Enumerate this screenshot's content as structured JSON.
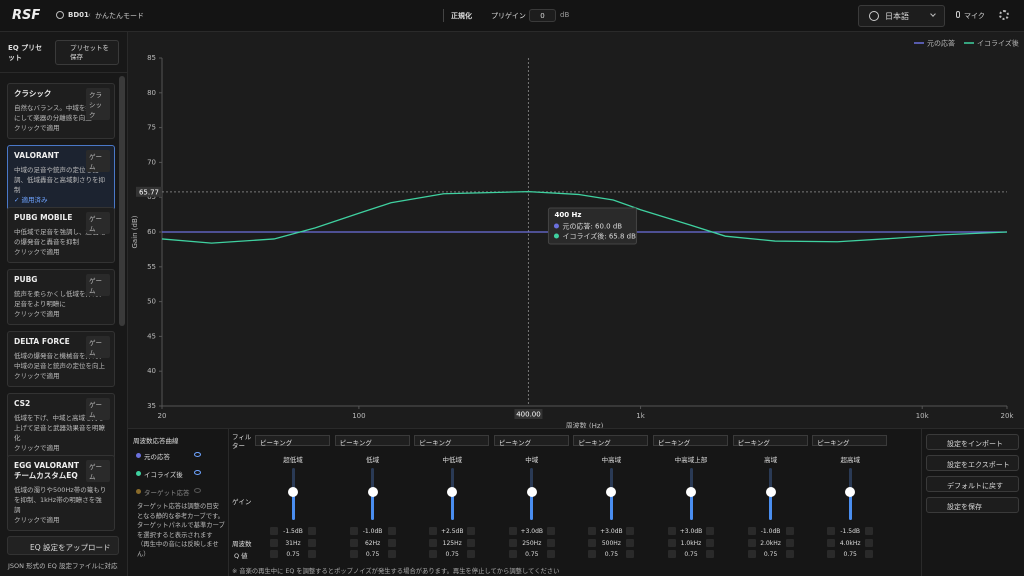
{
  "topbar": {
    "logo": "RSF",
    "device": "BD01",
    "mode": "かんたんモード",
    "normalize": "正規化",
    "pregain_label": "プリゲイン",
    "pregain": "0",
    "pregain_unit": "dB",
    "language": "日本語",
    "mic": "マイク"
  },
  "sidebar": {
    "title": "EQ プリセット",
    "save": "プリセットを保存",
    "presets": [
      {
        "name": "クラシック",
        "tag": "クラシック",
        "desc": "自然なバランス。中域を控えめにして楽器の分離感を向上",
        "action": "クリックで適用"
      },
      {
        "name": "VALORANT",
        "tag": "ゲーム",
        "desc": "中域の足音や銃声の定位を強調、低域轟音と高域刺さりを抑制",
        "action": "✓ 適用済み"
      },
      {
        "name": "PUBG MOBILE",
        "tag": "ゲーム",
        "desc": "中低域で足音を強調し、超低域の爆発音と轟音を抑制",
        "action": "クリックで適用"
      },
      {
        "name": "PUBG",
        "tag": "ゲーム",
        "desc": "銃声を柔らかくし低域を抑え、足音をより明瞭に",
        "action": "クリックで適用"
      },
      {
        "name": "DELTA FORCE",
        "tag": "ゲーム",
        "desc": "低域の爆発音と機械音を抑え、中域の足音と銃声の定位を向上",
        "action": "クリックで適用"
      },
      {
        "name": "CS2",
        "tag": "ゲーム",
        "desc": "低域を下げ、中域と高域を持ち上げて足音と武器効果音を明瞭化",
        "action": "クリックで適用"
      },
      {
        "name": "EGG VALORANT チームカスタムEQ",
        "tag": "ゲーム",
        "desc": "低域の濁りや500Hz帯の篭もりを抑制、1kHz帯の明瞭さを強調",
        "action": "クリックで適用"
      }
    ],
    "upload": "EQ 設定をアップロード",
    "upload_note": "JSON 形式の EQ 設定ファイルに対応"
  },
  "chart_data": {
    "type": "line",
    "x_label": "周波数 (Hz)",
    "y_label": "Gain (dB)",
    "x": [
      20,
      30,
      50,
      70,
      100,
      130,
      200,
      400,
      600,
      800,
      1000,
      1500,
      2000,
      3000,
      5000,
      8000,
      12000,
      20000
    ],
    "series": [
      {
        "name": "元の応答",
        "color": "#6b70dc",
        "values": [
          60,
          60,
          60,
          60,
          60,
          60,
          60,
          60,
          60,
          60,
          60,
          60,
          60,
          60,
          60,
          60,
          60,
          60
        ]
      },
      {
        "name": "イコライズ後",
        "color": "#3fd1a0",
        "values": [
          59.0,
          58.4,
          59.0,
          60.6,
          62.7,
          64.2,
          65.5,
          65.8,
          65.4,
          64.6,
          63.2,
          61.0,
          59.4,
          58.7,
          58.6,
          59.1,
          59.6,
          60.0
        ]
      }
    ],
    "xlim": [
      20,
      20000
    ],
    "log_x": true,
    "xticks": [
      20,
      100,
      {
        "value": 1000,
        "label": "1k"
      },
      {
        "value": 10000,
        "label": "10k"
      },
      {
        "value": 20000,
        "label": "20k"
      }
    ],
    "ylim": [
      35,
      85
    ],
    "yticks": [
      35,
      40,
      45,
      50,
      55,
      60,
      65,
      70,
      75,
      80,
      85
    ],
    "grid": false,
    "legend": "top-right",
    "crosshair": {
      "x": {
        "value": 400,
        "label": "400.00"
      },
      "y": 65.77
    },
    "tooltip": {
      "title": "400 Hz",
      "lines": [
        "元の応答: 60.0 dB",
        "イコライズ後: 65.8 dB"
      ]
    }
  },
  "curves_panel": {
    "title": "周波数応答曲線",
    "items": [
      "元の応答",
      "イコライズ後",
      "ターゲット応答"
    ],
    "note": "ターゲット応答は調整の目安となる静的な参考カーブです。ターゲットパネルで基準カーブを選択すると表示されます（再生中の音には反映しません）"
  },
  "eq": {
    "filter_label": "フィルター",
    "gain_label": "ゲイン",
    "freq_label": "周波数",
    "q_label": "Q 値",
    "bands": [
      {
        "type": "ピーキング",
        "name": "超低域",
        "gain": "-1.5dB",
        "freq": "31Hz",
        "q": "0.75"
      },
      {
        "type": "ピーキング",
        "name": "低域",
        "gain": "-1.0dB",
        "freq": "62Hz",
        "q": "0.75"
      },
      {
        "type": "ピーキング",
        "name": "中低域",
        "gain": "+2.5dB",
        "freq": "125Hz",
        "q": "0.75"
      },
      {
        "type": "ピーキング",
        "name": "中域",
        "gain": "+3.0dB",
        "freq": "250Hz",
        "q": "0.75"
      },
      {
        "type": "ピーキング",
        "name": "中高域",
        "gain": "+3.0dB",
        "freq": "500Hz",
        "q": "0.75"
      },
      {
        "type": "ピーキング",
        "name": "中高域上部",
        "gain": "+3.0dB",
        "freq": "1.0kHz",
        "q": "0.75"
      },
      {
        "type": "ピーキング",
        "name": "高域",
        "gain": "-1.0dB",
        "freq": "2.0kHz",
        "q": "0.75"
      },
      {
        "type": "ピーキング",
        "name": "超高域",
        "gain": "-1.5dB",
        "freq": "4.0kHz",
        "q": "0.75"
      }
    ],
    "notice": "※ 音楽の再生中に EQ を調整するとポップノイズが発生する場合があります。再生を停止してから調整してください"
  },
  "actions": [
    "設定をインポート",
    "設定をエクスポート",
    "デフォルトに戻す",
    "設定を保存"
  ]
}
